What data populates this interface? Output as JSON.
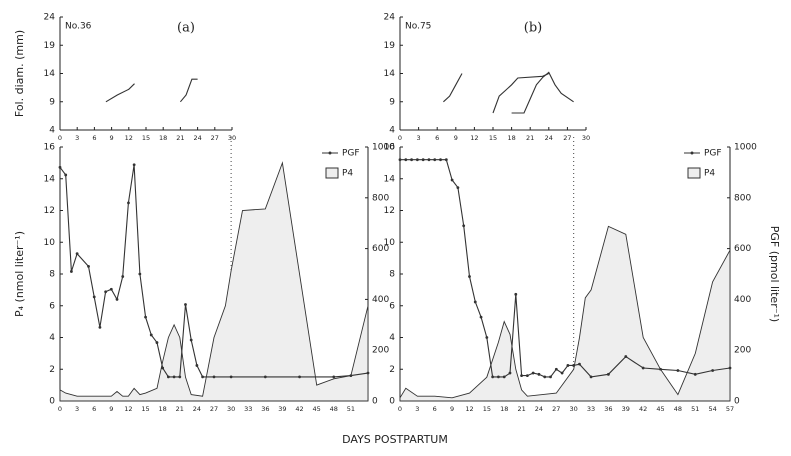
{
  "chart_data": [
    {
      "type": "line",
      "panel": "(a)",
      "label": "No.36",
      "ylabel": "Fol. diam. (mm)",
      "xlim": [
        0,
        30
      ],
      "xticks": [
        0,
        3,
        6,
        9,
        12,
        15,
        18,
        21,
        24,
        27,
        30
      ],
      "ylim": [
        4,
        24
      ],
      "yticks": [
        4,
        9,
        14,
        19,
        24
      ],
      "series": [
        {
          "color": "#333333",
          "x": [
            8,
            10,
            12,
            13
          ],
          "values": [
            9,
            10.2,
            11.2,
            12.2
          ]
        },
        {
          "color": "#333333",
          "x": [
            21,
            22,
            23,
            24
          ],
          "values": [
            9,
            10.2,
            13,
            13
          ]
        }
      ]
    },
    {
      "type": "line",
      "ylabel": "P₄ (nmol liter⁻¹)",
      "legend": "upper right",
      "divider": 30,
      "xlim": [
        0,
        54
      ],
      "xticks": [
        0,
        3,
        6,
        9,
        12,
        15,
        18,
        21,
        24,
        27,
        30,
        33,
        36,
        39,
        42,
        45,
        48,
        51
      ],
      "ylim": [
        0,
        16
      ],
      "yticks": [
        0,
        2,
        4,
        6,
        8,
        10,
        12,
        14,
        16
      ],
      "y2lim": [
        0,
        1000
      ],
      "y2ticks": [
        0,
        200,
        400,
        600,
        800,
        1000
      ],
      "series": [
        {
          "name": "PGF",
          "axis": "y2",
          "style": "dots",
          "color": "#333333",
          "x": [
            0,
            1,
            2,
            3,
            5,
            6,
            7,
            8,
            9,
            10,
            11,
            12,
            13,
            14,
            15,
            16,
            17,
            18,
            19,
            20,
            21,
            22,
            23,
            24,
            25,
            27,
            30,
            36,
            42,
            48,
            51,
            54
          ],
          "values": [
            920,
            890,
            510,
            580,
            530,
            410,
            290,
            430,
            440,
            400,
            490,
            780,
            930,
            500,
            330,
            260,
            230,
            130,
            95,
            95,
            95,
            380,
            240,
            140,
            95,
            95,
            95,
            95,
            95,
            95,
            100,
            110
          ]
        },
        {
          "name": "P4",
          "style": "area",
          "color": "#eeeeee",
          "x": [
            0,
            1,
            3,
            6,
            9,
            10,
            11,
            12,
            13,
            14,
            15,
            17,
            18,
            19,
            20,
            21,
            22,
            23,
            25,
            27,
            29,
            30,
            32,
            36,
            39,
            45,
            48,
            51,
            54
          ],
          "values": [
            0.7,
            0.5,
            0.3,
            0.3,
            0.3,
            0.6,
            0.3,
            0.3,
            0.8,
            0.4,
            0.5,
            0.8,
            2.5,
            4,
            4.8,
            4,
            1.5,
            0.4,
            0.3,
            4,
            6,
            8.2,
            12,
            12.1,
            15,
            1,
            1.4,
            1.6,
            6
          ]
        }
      ]
    },
    {
      "type": "line",
      "panel": "(b)",
      "label": "No.75",
      "xlim": [
        0,
        30
      ],
      "xticks": [
        0,
        3,
        6,
        9,
        12,
        15,
        18,
        21,
        24,
        27,
        30
      ],
      "ylim": [
        4,
        24
      ],
      "yticks": [
        4,
        9,
        14,
        19,
        24
      ],
      "series": [
        {
          "color": "#333333",
          "x": [
            7,
            8,
            9,
            10
          ],
          "values": [
            9,
            10,
            12,
            14
          ]
        },
        {
          "color": "#333333",
          "x": [
            15,
            16,
            17,
            18,
            19,
            23,
            24
          ],
          "values": [
            7,
            10,
            11,
            12,
            13.2,
            13.5,
            14
          ]
        },
        {
          "color": "#333333",
          "x": [
            18,
            20,
            21,
            22,
            23,
            24,
            25,
            26,
            28
          ],
          "values": [
            7,
            7,
            9.5,
            12,
            13.3,
            14.2,
            12,
            10.5,
            9
          ]
        }
      ]
    },
    {
      "type": "line",
      "y2label": "PGF (pmol liter⁻¹)",
      "legend": "upper right",
      "divider": 30,
      "xlim": [
        0,
        57
      ],
      "xticks": [
        0,
        3,
        6,
        9,
        12,
        15,
        18,
        21,
        24,
        27,
        30,
        33,
        36,
        39,
        42,
        45,
        48,
        51,
        54,
        57
      ],
      "ylim": [
        0,
        16
      ],
      "yticks": [
        0,
        2,
        4,
        6,
        8,
        10,
        12,
        14,
        16
      ],
      "y2lim": [
        0,
        1000
      ],
      "y2ticks": [
        0,
        200,
        400,
        600,
        800,
        1000
      ],
      "series": [
        {
          "name": "PGF",
          "axis": "y2",
          "style": "dots",
          "color": "#333333",
          "x": [
            0,
            1,
            2,
            3,
            4,
            5,
            6,
            7,
            8,
            9,
            10,
            11,
            12,
            13,
            14,
            15,
            16,
            17,
            18,
            19,
            20,
            21,
            22,
            23,
            24,
            25,
            26,
            27,
            28,
            29,
            30,
            31,
            33,
            36,
            39,
            42,
            45,
            48,
            51,
            54,
            57
          ],
          "values": [
            950,
            950,
            950,
            950,
            950,
            950,
            950,
            950,
            950,
            870,
            840,
            690,
            490,
            390,
            330,
            250,
            95,
            95,
            95,
            110,
            420,
            100,
            100,
            110,
            105,
            95,
            95,
            125,
            110,
            140,
            140,
            145,
            95,
            105,
            175,
            130,
            125,
            120,
            105,
            120,
            130
          ]
        },
        {
          "name": "P4",
          "style": "area",
          "color": "#eeeeee",
          "x": [
            0,
            1,
            3,
            6,
            9,
            12,
            15,
            17,
            18,
            19,
            20,
            21,
            22,
            27,
            30,
            31,
            32,
            33,
            36,
            39,
            42,
            45,
            48,
            51,
            54,
            57
          ],
          "values": [
            0.2,
            0.8,
            0.3,
            0.3,
            0.2,
            0.5,
            1.5,
            3.7,
            5,
            4.2,
            2,
            0.7,
            0.3,
            0.5,
            2,
            4,
            6.5,
            7,
            11,
            10.5,
            4,
            2,
            0.4,
            3,
            7.5,
            9.5
          ]
        }
      ]
    }
  ],
  "xlabel": "DAYS POSTPARTUM"
}
